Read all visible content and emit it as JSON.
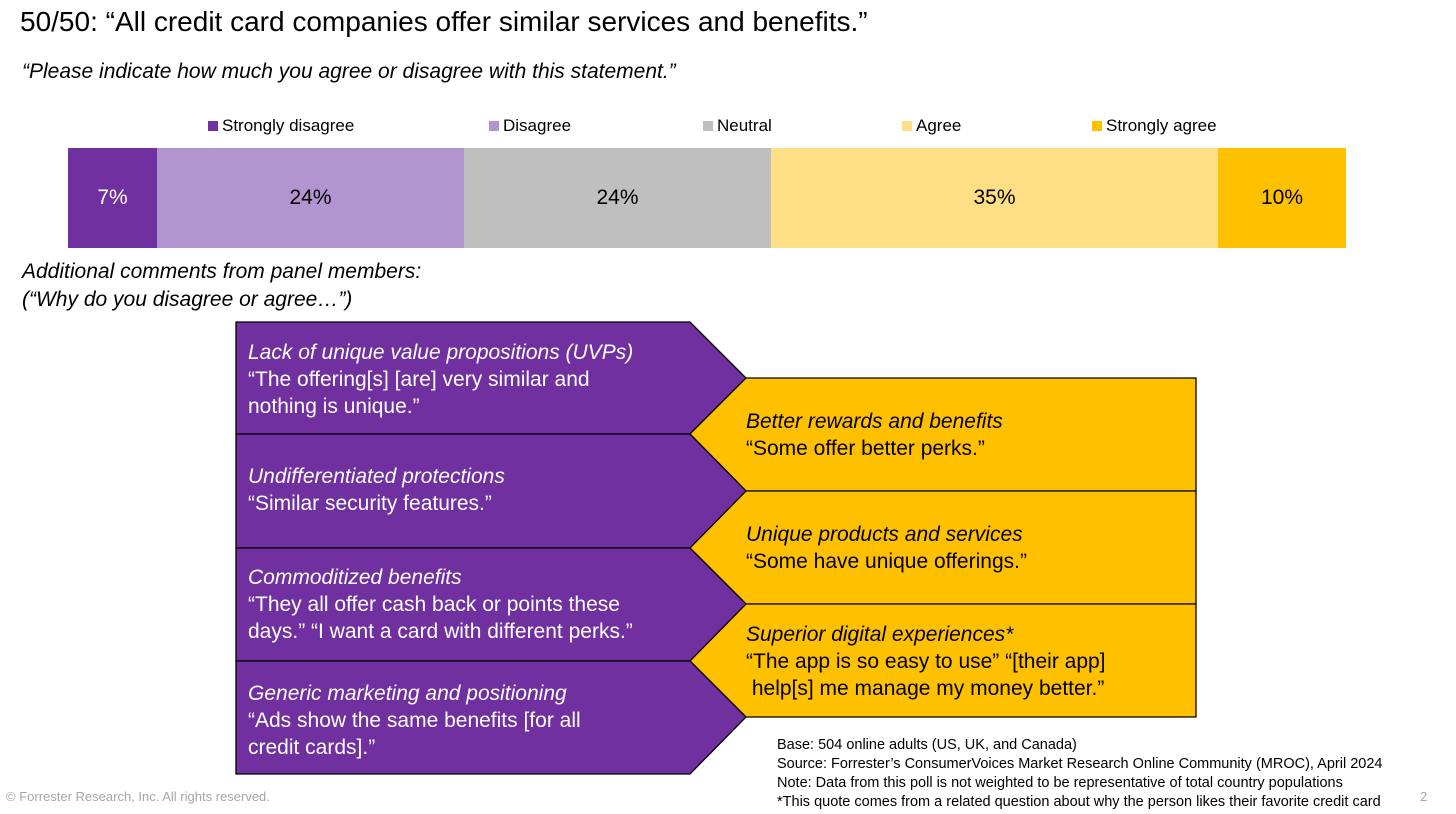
{
  "title": "50/50: “All credit card companies offer similar services and benefits.”",
  "question": "“Please indicate how much you agree or disagree with this statement.”",
  "chart_data": {
    "type": "bar",
    "orientation": "horizontal-stacked-100",
    "title": "",
    "categories": [
      "Strongly disagree",
      "Disagree",
      "Neutral",
      "Agree",
      "Strongly agree"
    ],
    "values": [
      7,
      24,
      24,
      35,
      10
    ],
    "value_labels": [
      "7%",
      "24%",
      "24%",
      "35%",
      "10%"
    ],
    "colors": [
      "#7030a0",
      "#b294d0",
      "#bfbfbf",
      "#ffdf85",
      "#ffc000"
    ],
    "legend_position": "top",
    "grid": false
  },
  "comments_heading": {
    "line1": "Additional comments from panel members:",
    "line2": "(“Why do you disagree or agree…”)"
  },
  "disagree_reasons": [
    {
      "heading": "Lack of unique value propositions (UVPs)",
      "quote": "“The offering[s] [are] very similar and\nnothing is unique.”"
    },
    {
      "heading": "Undifferentiated protections",
      "quote": "“Similar security features.”"
    },
    {
      "heading": "Commoditized benefits",
      "quote": "“They all offer cash back or points these\ndays.” “I want a card with different perks.”"
    },
    {
      "heading": "Generic marketing and positioning",
      "quote": "“Ads show the same benefits [for all\ncredit cards].”"
    }
  ],
  "agree_reasons": [
    {
      "heading": "Better rewards and benefits",
      "quote": "“Some offer better perks.”"
    },
    {
      "heading": "Unique products and services",
      "quote": "“Some have unique offerings.”"
    },
    {
      "heading": "Superior digital experiences*",
      "quote": "“The app is so easy to use” “[their app]\n help[s] me manage my money better.”"
    }
  ],
  "colors": {
    "purple": "#7030a0",
    "gold": "#ffc000"
  },
  "footnotes": {
    "base": "Base: 504 online adults (US, UK, and Canada)",
    "source": "Source: Forrester’s ConsumerVoices Market Research Online Community (MROC), April 2024",
    "note": "Note: Data from this poll is not weighted to be representative of total country populations",
    "asterisk": "*This quote comes from a related question about why the person likes their favorite credit card"
  },
  "copyright": "© Forrester Research, Inc. All rights reserved.",
  "page_number": "2"
}
